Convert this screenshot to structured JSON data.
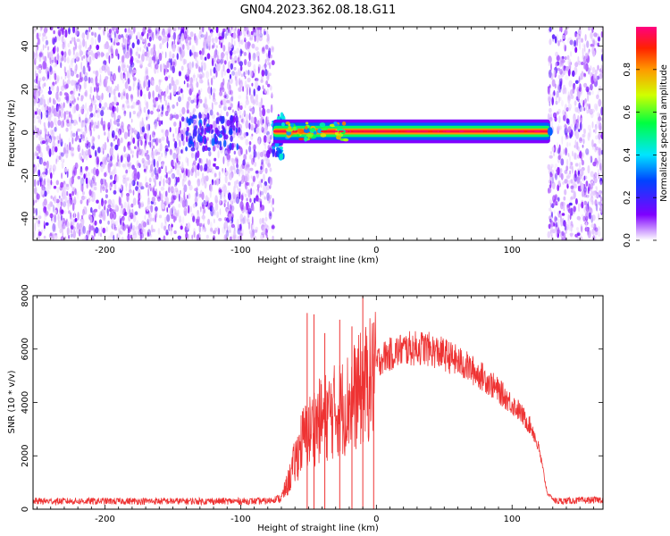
{
  "title": "GN04.2023.362.08.18.G11",
  "colorbar": {
    "label": "Normalized spectral amplitude",
    "ticks": [
      "0.0",
      "0.2",
      "0.4",
      "0.6",
      "0.8"
    ],
    "range": [
      0,
      1
    ]
  },
  "chart_data": [
    {
      "type": "heatmap",
      "xlabel": "Height of straight line (km)",
      "ylabel": "Frequency (Hz)",
      "xlim": [
        -253,
        167
      ],
      "ylim": [
        -50,
        49
      ],
      "xticks": [
        "-200",
        "-100",
        "0",
        "100"
      ],
      "yticks": [
        "-40",
        "-20",
        "0",
        "20",
        "40"
      ],
      "regions": [
        {
          "name": "noise",
          "x": [
            -253,
            -76
          ]
        },
        {
          "name": "signal_band",
          "x": [
            -76,
            128
          ],
          "freq": 0.5,
          "amplitude": 1.0
        },
        {
          "name": "noise",
          "x": [
            127,
            167
          ]
        }
      ]
    },
    {
      "type": "line",
      "xlabel": "Height of straight line (km)",
      "ylabel": "SNR (10 * v/v)",
      "xlim": [
        -253,
        167
      ],
      "ylim": [
        0,
        8000
      ],
      "xticks": [
        "-200",
        "-100",
        "0",
        "100"
      ],
      "yticks": [
        "0",
        "2000",
        "4000",
        "6000",
        "8000"
      ],
      "color": "#ee3333",
      "envelope": {
        "x": [
          -253,
          -160,
          -80,
          -70,
          -65,
          -55,
          -45,
          -35,
          -25,
          -15,
          -5,
          5,
          20,
          35,
          50,
          65,
          80,
          95,
          105,
          115,
          120,
          126,
          132,
          167
        ],
        "y": [
          300,
          300,
          300,
          450,
          1100,
          2800,
          3500,
          3900,
          4200,
          4700,
          5300,
          5700,
          6000,
          6050,
          5800,
          5400,
          4900,
          4200,
          3700,
          3000,
          2200,
          600,
          300,
          350
        ]
      },
      "spikes": [
        {
          "x": -51,
          "y": 7350
        },
        {
          "x": -46,
          "y": 7300
        },
        {
          "x": -38,
          "y": 6600
        },
        {
          "x": -27,
          "y": 7100
        },
        {
          "x": -18,
          "y": 6850
        },
        {
          "x": -10,
          "y": 8200
        },
        {
          "x": -2,
          "y": 7000
        }
      ]
    }
  ]
}
